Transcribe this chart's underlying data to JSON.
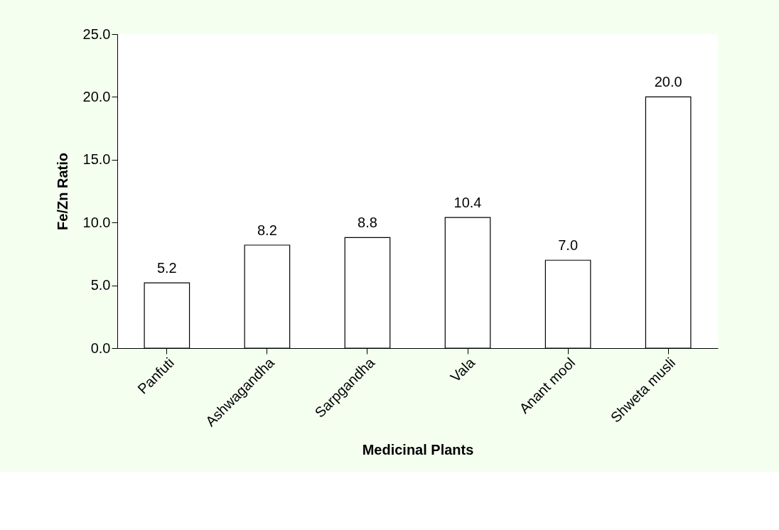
{
  "chart_data": {
    "type": "bar",
    "xlabel": "Medicinal Plants",
    "ylabel": "Fe/Zn Ratio",
    "categories": [
      "Panfuti",
      "Ashwagandha",
      "Sarpgandha",
      "Vala",
      "Anant mool",
      "Shweta musli"
    ],
    "values": [
      5.2,
      8.2,
      8.8,
      10.4,
      7.0,
      20.0
    ],
    "color": "#ffffff",
    "ylim": [
      0,
      25
    ],
    "yticks": [
      {
        "value": 0,
        "label": "0.0"
      },
      {
        "value": 5,
        "label": "5.0"
      },
      {
        "value": 10,
        "label": "10.0"
      },
      {
        "value": 15,
        "label": "15.0"
      },
      {
        "value": 20,
        "label": "20.0"
      },
      {
        "value": 25,
        "label": "25.0"
      }
    ],
    "value_labels": [
      "5.2",
      "8.2",
      "8.8",
      "10.4",
      "7.0",
      "20.0"
    ],
    "grid": false
  }
}
